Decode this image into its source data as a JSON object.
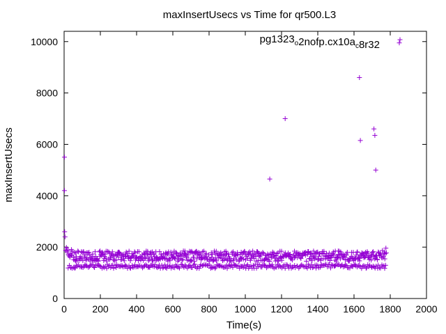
{
  "chart_data": {
    "type": "scatter",
    "title": "maxInsertUsecs vs Time for qr500.L3",
    "xlabel": "Time(s)",
    "ylabel": "maxInsertUsecs",
    "xlim": [
      0,
      2000
    ],
    "ylim": [
      0,
      10400
    ],
    "x_ticks": [
      0,
      200,
      400,
      600,
      800,
      1000,
      1200,
      1400,
      1600,
      1800,
      2000
    ],
    "y_ticks": [
      0,
      2000,
      4000,
      6000,
      8000,
      10000
    ],
    "grid": false,
    "legend_position": "top-right",
    "marker": "plus",
    "color": "#9400d3",
    "series": [
      {
        "legend_parts": [
          {
            "text": "pg1323",
            "sub": false
          },
          {
            "text": "o",
            "sub": true
          },
          {
            "text": "2nofp.cx10a",
            "sub": false
          },
          {
            "text": "c",
            "sub": true
          },
          {
            "text": "8r32",
            "sub": false
          }
        ],
        "outliers": [
          {
            "x": 2,
            "y": 5500
          },
          {
            "x": 2,
            "y": 4200
          },
          {
            "x": 3,
            "y": 2600
          },
          {
            "x": 5,
            "y": 2400
          },
          {
            "x": 1135,
            "y": 4650
          },
          {
            "x": 1220,
            "y": 7000
          },
          {
            "x": 1630,
            "y": 8600
          },
          {
            "x": 1635,
            "y": 6150
          },
          {
            "x": 1710,
            "y": 6600
          },
          {
            "x": 1715,
            "y": 6350
          },
          {
            "x": 1720,
            "y": 5000
          },
          {
            "x": 1850,
            "y": 9950
          }
        ],
        "bands": [
          {
            "x_start": 5,
            "x_end": 1780,
            "y_center": 1650,
            "y_spread": 200,
            "count": 620
          },
          {
            "x_start": 20,
            "x_end": 1780,
            "y_center": 1250,
            "y_spread": 80,
            "count": 300
          }
        ]
      }
    ]
  }
}
